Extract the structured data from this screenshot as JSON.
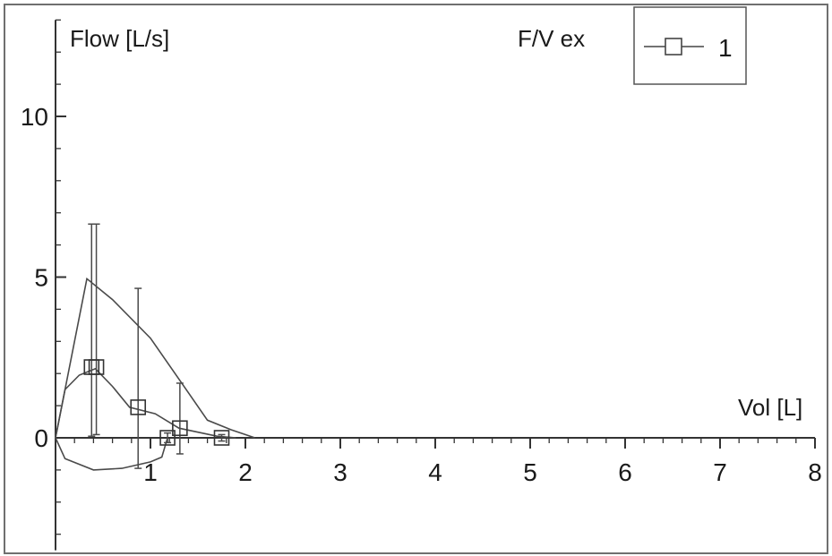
{
  "chart_data": {
    "type": "line",
    "title": "F/V ex",
    "xlabel": "Vol [L]",
    "ylabel": "Flow [L/s]",
    "xlim": [
      0,
      8
    ],
    "ylim": [
      -3.5,
      13
    ],
    "x_ticks": [
      "1",
      "2",
      "3",
      "4",
      "5",
      "6",
      "7",
      "8"
    ],
    "y_ticks": [
      "0",
      "5",
      "10"
    ],
    "grid": false,
    "legend_position": "top-right",
    "legend": [
      {
        "label": "1",
        "marker": "square"
      }
    ],
    "series": [
      {
        "name": "1",
        "marker": "square",
        "points": [
          {
            "x": 0.38,
            "y": 2.2,
            "err_low": 2.15,
            "err_high": 4.45
          },
          {
            "x": 0.43,
            "y": 2.2,
            "err_low": 2.1,
            "err_high": 4.45
          },
          {
            "x": 0.87,
            "y": 0.95,
            "err_low": 1.9,
            "err_high": 3.7
          },
          {
            "x": 1.18,
            "y": 0.0,
            "err_low": 0.15,
            "err_high": 0.15
          },
          {
            "x": 1.31,
            "y": 0.3,
            "err_low": 0.8,
            "err_high": 1.4
          },
          {
            "x": 1.75,
            "y": 0.0,
            "err_low": 0.1,
            "err_high": 0.1
          }
        ]
      }
    ],
    "outline_upper": [
      [
        0.0,
        0.0
      ],
      [
        0.33,
        4.95
      ],
      [
        0.6,
        4.3
      ],
      [
        1.0,
        3.1
      ],
      [
        1.4,
        1.4
      ],
      [
        1.6,
        0.55
      ],
      [
        1.85,
        0.25
      ],
      [
        2.1,
        0.0
      ]
    ],
    "outline_inner": [
      [
        0.0,
        0.0
      ],
      [
        0.1,
        1.5
      ],
      [
        0.25,
        1.95
      ],
      [
        0.42,
        2.15
      ],
      [
        0.6,
        1.6
      ],
      [
        0.78,
        0.95
      ],
      [
        1.05,
        0.75
      ],
      [
        1.3,
        0.3
      ],
      [
        1.7,
        0.05
      ],
      [
        1.9,
        0.0
      ]
    ],
    "outline_lower": [
      [
        0.0,
        0.0
      ],
      [
        0.1,
        -0.65
      ],
      [
        0.4,
        -1.0
      ],
      [
        0.7,
        -0.95
      ],
      [
        1.0,
        -0.75
      ],
      [
        1.12,
        -0.6
      ],
      [
        1.18,
        0.0
      ]
    ]
  }
}
